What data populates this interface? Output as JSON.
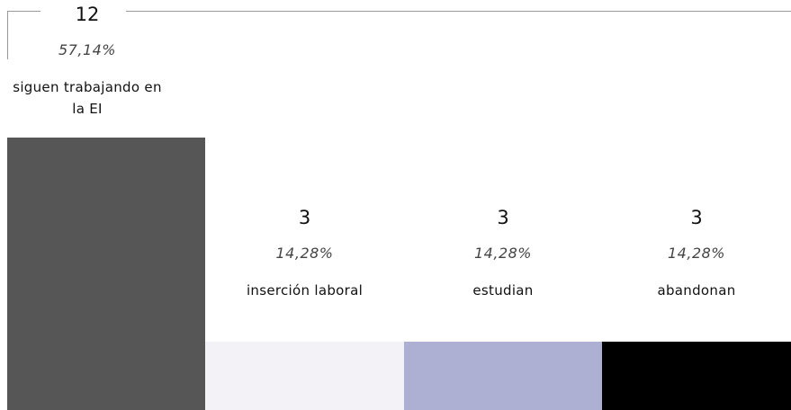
{
  "chart_data": {
    "type": "bar",
    "categories": [
      "siguen trabajando en la EI",
      "inserción laboral",
      "estudian",
      "abandonan"
    ],
    "values": [
      12,
      3,
      3,
      3
    ],
    "shares": [
      57.14,
      14.28,
      14.28,
      14.28
    ],
    "share_labels": [
      "57,14%",
      "14,28%",
      "14,28%",
      "14,28%"
    ],
    "colors": [
      "#565656",
      "#f2f2f7",
      "#adb0d2",
      "#000000"
    ],
    "ylim": [
      0,
      12
    ]
  }
}
